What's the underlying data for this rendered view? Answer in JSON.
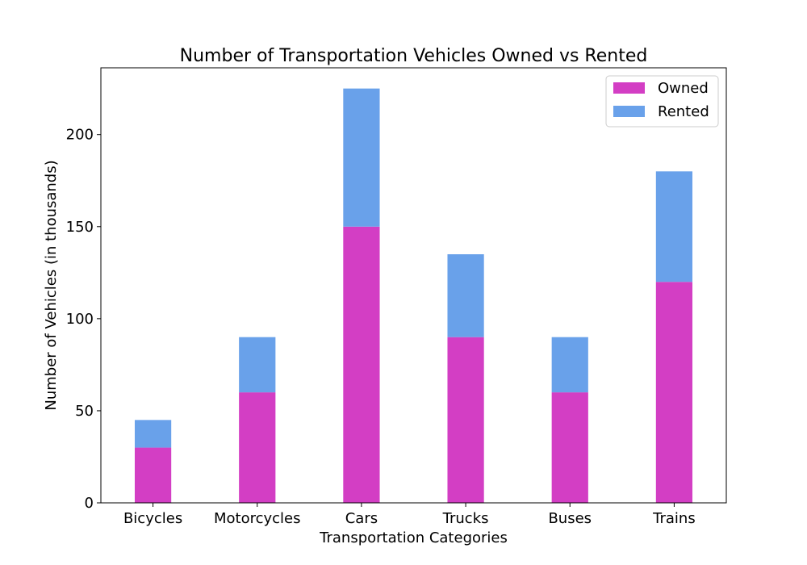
{
  "chart_data": {
    "type": "bar",
    "stacked": true,
    "title": "Number of Transportation Vehicles Owned vs Rented",
    "xlabel": "Transportation Categories",
    "ylabel": "Number of Vehicles (in thousands)",
    "categories": [
      "Bicycles",
      "Motorcycles",
      "Cars",
      "Trucks",
      "Buses",
      "Trains"
    ],
    "series": [
      {
        "name": "Owned",
        "values": [
          30,
          60,
          150,
          90,
          60,
          120
        ],
        "color": "#d33ec4"
      },
      {
        "name": "Rented",
        "values": [
          15,
          30,
          75,
          45,
          30,
          60
        ],
        "color": "#69a1ea"
      }
    ],
    "ylim": [
      0,
      236.25
    ],
    "yticks": [
      0,
      50,
      100,
      150,
      200
    ],
    "grid": false,
    "legend_position": "top-right"
  }
}
